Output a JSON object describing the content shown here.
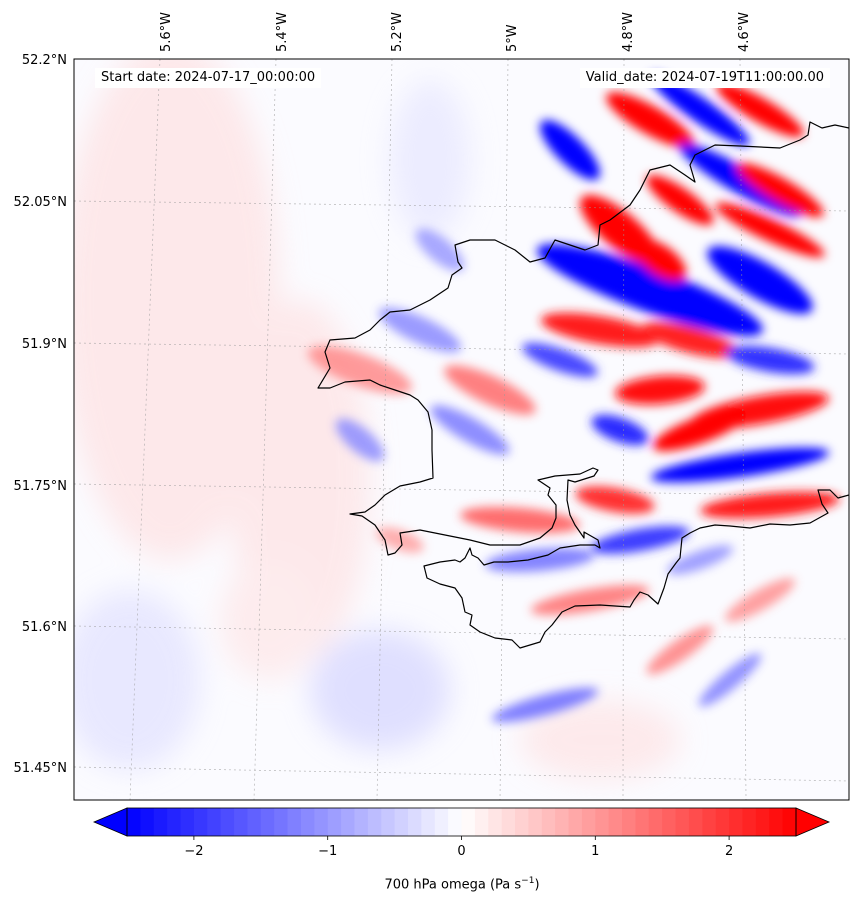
{
  "map": {
    "start_date": "Start date: 2024-07-17_00:00:00",
    "valid_date": "Valid_date: 2024-07-19T11:00:00.00",
    "lon_labels": [
      "5.6°W",
      "5.4°W",
      "5.2°W",
      "5°W",
      "4.8°W",
      "4.6°W"
    ],
    "lat_labels": [
      "52.2°N",
      "52.05°N",
      "51.9°N",
      "51.75°N",
      "51.6°N",
      "51.45°N"
    ],
    "colors": {
      "negative": "#0000ff",
      "positive": "#ff0000",
      "neutral": "#ffffff",
      "coastline": "#000000"
    }
  },
  "colorbar": {
    "title_prefix": "700 hPa omega (Pa s",
    "title_exp": "−1",
    "title_suffix": ")",
    "min": -2.5,
    "max": 2.5,
    "tick_values": [
      -2,
      -1,
      0,
      1,
      2
    ],
    "tick_labels": [
      "−2",
      "−1",
      "0",
      "1",
      "2"
    ],
    "extend": "both"
  }
}
